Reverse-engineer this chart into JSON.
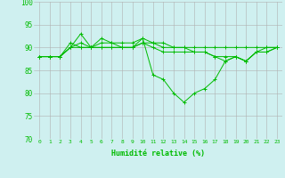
{
  "xlabel": "Humidité relative (%)",
  "background_color": "#cff0f0",
  "grid_color": "#b0b0b0",
  "line_color": "#00bb00",
  "xlim": [
    -0.5,
    23.5
  ],
  "ylim": [
    70,
    100
  ],
  "yticks": [
    70,
    75,
    80,
    85,
    90,
    95,
    100
  ],
  "xticks": [
    0,
    1,
    2,
    3,
    4,
    5,
    6,
    7,
    8,
    9,
    10,
    11,
    12,
    13,
    14,
    15,
    16,
    17,
    18,
    19,
    20,
    21,
    22,
    23
  ],
  "lines": [
    [
      88,
      88,
      88,
      90,
      93,
      90,
      91,
      91,
      90,
      90,
      92,
      84,
      83,
      80,
      78,
      80,
      81,
      83,
      87,
      88,
      87,
      89,
      90,
      90
    ],
    [
      88,
      88,
      88,
      91,
      90,
      90,
      92,
      91,
      91,
      91,
      92,
      91,
      91,
      90,
      90,
      90,
      90,
      90,
      90,
      90,
      90,
      90,
      90,
      90
    ],
    [
      88,
      88,
      88,
      90,
      91,
      90,
      90,
      90,
      90,
      90,
      91,
      91,
      90,
      90,
      90,
      89,
      89,
      88,
      88,
      88,
      87,
      89,
      89,
      90
    ],
    [
      88,
      88,
      88,
      90,
      90,
      90,
      90,
      90,
      90,
      90,
      91,
      90,
      89,
      89,
      89,
      89,
      89,
      88,
      87,
      88,
      87,
      89,
      89,
      90
    ]
  ]
}
